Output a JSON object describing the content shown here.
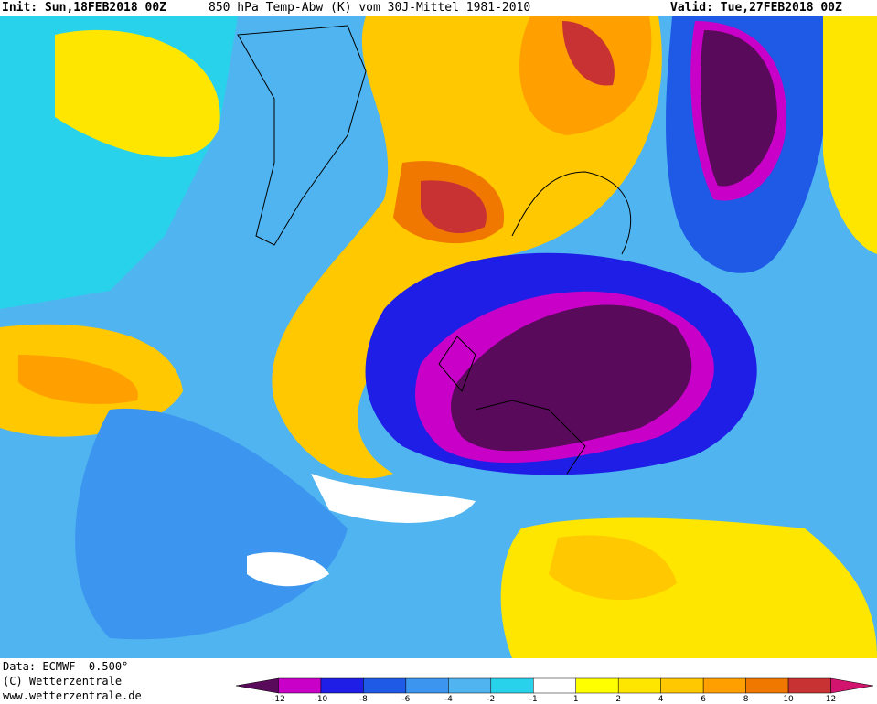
{
  "header": {
    "init": "Init: Sun,18FEB2018 00Z",
    "title": "850 hPa Temp-Abw (K) vom 30J-Mittel 1981-2010",
    "valid": "Valid: Tue,27FEB2018 00Z"
  },
  "footer": {
    "data": "Data: ECMWF  0.500°",
    "copyright": "(C) Wetterzentrale",
    "url": "www.wetterzentrale.de"
  },
  "colorbar": {
    "ticks": [
      -12,
      -10,
      -8,
      -6,
      -4,
      -2,
      -1,
      1,
      2,
      4,
      6,
      8,
      10,
      12
    ],
    "colors": [
      "#5a0a5a",
      "#c800c8",
      "#1e1ee6",
      "#1e5ae6",
      "#3c96f0",
      "#50b4f0",
      "#28d2eb",
      "#ffffff",
      "#ffff00",
      "#ffe600",
      "#ffc800",
      "#ffa000",
      "#f07800",
      "#c83232",
      "#d2146e"
    ]
  }
}
